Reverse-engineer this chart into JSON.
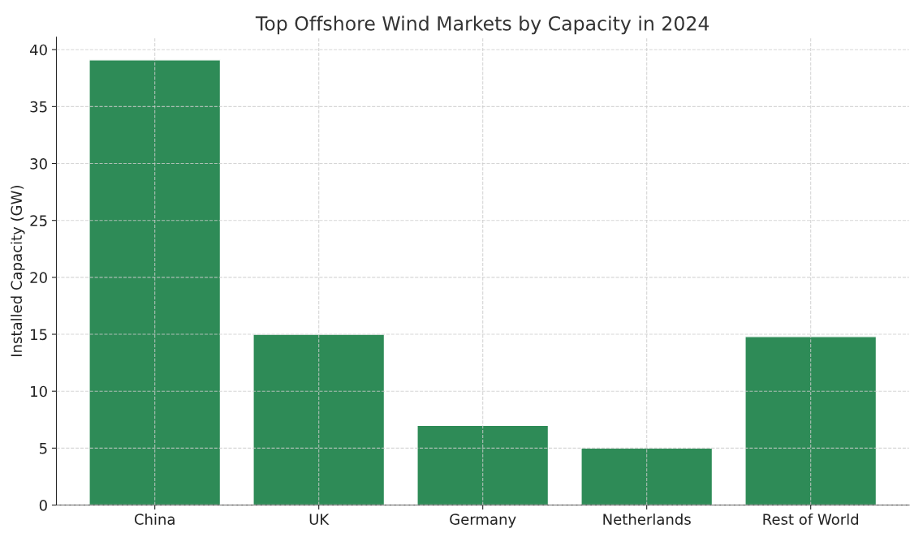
{
  "chart_data": {
    "type": "bar",
    "title": "Top Offshore Wind Markets by Capacity in 2024",
    "ylabel": "Installed Capacity (GW)",
    "categories": [
      "China",
      "UK",
      "Germany",
      "Netherlands",
      "Rest of World"
    ],
    "values": [
      39.1,
      15,
      7,
      5,
      14.8
    ],
    "color": "#2e8b57",
    "ylim": [
      0,
      41.1
    ],
    "yticks": [
      0,
      5,
      10,
      15,
      20,
      25,
      30,
      35,
      40
    ],
    "grid": true
  }
}
